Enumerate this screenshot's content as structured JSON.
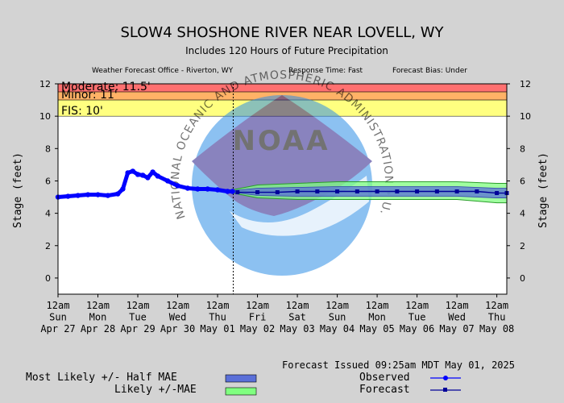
{
  "header": {
    "title": "SLOW4 SHOSHONE RIVER NEAR LOVELL, WY",
    "subtitle": "Includes 120 Hours of Future Precipitation",
    "wfo": "Weather Forecast Office - Riverton, WY",
    "response_time": "Response Time: Fast",
    "forecast_bias": "Forecast Bias:  Under"
  },
  "footer": {
    "issued": "Forecast Issued 09:25am MDT May 01, 2025"
  },
  "legend": {
    "most_likely": "Most Likely +/- Half MAE",
    "likely": "Likely +/-MAE",
    "observed": "Observed",
    "forecast": "Forecast"
  },
  "watermark": {
    "logo_text": "NOAA",
    "ring_text": "NATIONAL OCEANIC AND ATMOSPHERIC ADMINISTRATION • U.S. DEPARTMENT OF COMMERCE •"
  },
  "colors": {
    "moderate": "#ff7070",
    "minor": "#ffb266",
    "action": "#ffff80",
    "observed": "#0000ff",
    "forecast": "#000099",
    "half_mae_band": "#5a6fd8",
    "mae_band": "#80ff80",
    "plot_bg": "#ffffff",
    "page_bg": "#d3d3d3"
  },
  "chart_data": {
    "type": "line",
    "ylabel_left": "Stage (feet)",
    "ylabel_right": "Stage (feet)",
    "ylim": [
      -1,
      12
    ],
    "yticks": [
      0,
      2,
      4,
      6,
      8,
      10,
      12
    ],
    "grid": false,
    "legend_position": "bottom",
    "xlim": [
      "2025-04-27 00:00",
      "2025-05-08 06:00"
    ],
    "xticks": [
      {
        "at": "2025-04-27 00:00",
        "l1": "12am",
        "l2": "Sun",
        "l3": "Apr 27"
      },
      {
        "at": "2025-04-28 00:00",
        "l1": "12am",
        "l2": "Mon",
        "l3": "Apr 28"
      },
      {
        "at": "2025-04-29 00:00",
        "l1": "12am",
        "l2": "Tue",
        "l3": "Apr 29"
      },
      {
        "at": "2025-04-30 00:00",
        "l1": "12am",
        "l2": "Wed",
        "l3": "Apr 30"
      },
      {
        "at": "2025-05-01 00:00",
        "l1": "12am",
        "l2": "Thu",
        "l3": "May 01"
      },
      {
        "at": "2025-05-02 00:00",
        "l1": "12am",
        "l2": "Fri",
        "l3": "May 02"
      },
      {
        "at": "2025-05-03 00:00",
        "l1": "12am",
        "l2": "Sat",
        "l3": "May 03"
      },
      {
        "at": "2025-05-04 00:00",
        "l1": "12am",
        "l2": "Sun",
        "l3": "May 04"
      },
      {
        "at": "2025-05-05 00:00",
        "l1": "12am",
        "l2": "Mon",
        "l3": "May 05"
      },
      {
        "at": "2025-05-06 00:00",
        "l1": "12am",
        "l2": "Tue",
        "l3": "May 06"
      },
      {
        "at": "2025-05-07 00:00",
        "l1": "12am",
        "l2": "Wed",
        "l3": "May 07"
      },
      {
        "at": "2025-05-08 00:00",
        "l1": "12am",
        "l2": "Thu",
        "l3": "May 08"
      }
    ],
    "flood_categories": [
      {
        "name": "moderate",
        "label": "Moderate: 11.5'",
        "from": 11.5,
        "to": 12
      },
      {
        "name": "minor",
        "label": "Minor: 11'",
        "from": 11,
        "to": 11.5
      },
      {
        "name": "action",
        "label": "FIS: 10'",
        "from": 10,
        "to": 11
      }
    ],
    "forecast_issued_at": "2025-05-01 09:25",
    "observed": [
      [
        "2025-04-27 00:00",
        5.0
      ],
      [
        "2025-04-27 06:00",
        5.05
      ],
      [
        "2025-04-27 12:00",
        5.1
      ],
      [
        "2025-04-27 18:00",
        5.15
      ],
      [
        "2025-04-28 00:00",
        5.15
      ],
      [
        "2025-04-28 06:00",
        5.1
      ],
      [
        "2025-04-28 12:00",
        5.2
      ],
      [
        "2025-04-28 15:00",
        5.5
      ],
      [
        "2025-04-28 18:00",
        6.5
      ],
      [
        "2025-04-28 21:00",
        6.6
      ],
      [
        "2025-04-29 00:00",
        6.4
      ],
      [
        "2025-04-29 03:00",
        6.35
      ],
      [
        "2025-04-29 06:00",
        6.2
      ],
      [
        "2025-04-29 09:00",
        6.55
      ],
      [
        "2025-04-29 12:00",
        6.3
      ],
      [
        "2025-04-29 18:00",
        6.0
      ],
      [
        "2025-04-30 00:00",
        5.7
      ],
      [
        "2025-04-30 06:00",
        5.55
      ],
      [
        "2025-04-30 12:00",
        5.5
      ],
      [
        "2025-04-30 18:00",
        5.5
      ],
      [
        "2025-05-01 00:00",
        5.45
      ],
      [
        "2025-05-01 06:00",
        5.35
      ],
      [
        "2025-05-01 09:00",
        5.35
      ]
    ],
    "forecast": [
      [
        "2025-05-01 12:00",
        5.3
      ],
      [
        "2025-05-02 00:00",
        5.3
      ],
      [
        "2025-05-02 12:00",
        5.3
      ],
      [
        "2025-05-03 00:00",
        5.35
      ],
      [
        "2025-05-03 12:00",
        5.35
      ],
      [
        "2025-05-04 00:00",
        5.35
      ],
      [
        "2025-05-04 12:00",
        5.35
      ],
      [
        "2025-05-05 00:00",
        5.35
      ],
      [
        "2025-05-05 12:00",
        5.35
      ],
      [
        "2025-05-06 00:00",
        5.35
      ],
      [
        "2025-05-06 12:00",
        5.35
      ],
      [
        "2025-05-07 00:00",
        5.35
      ],
      [
        "2025-05-07 12:00",
        5.35
      ],
      [
        "2025-05-08 00:00",
        5.25
      ],
      [
        "2025-05-08 06:00",
        5.25
      ]
    ],
    "mae_band": [
      [
        "2025-05-01 09:00",
        5.25,
        5.45
      ],
      [
        "2025-05-02 00:00",
        4.95,
        5.75
      ],
      [
        "2025-05-03 00:00",
        4.85,
        5.85
      ],
      [
        "2025-05-04 00:00",
        4.85,
        5.95
      ],
      [
        "2025-05-05 00:00",
        4.85,
        5.95
      ],
      [
        "2025-05-06 00:00",
        4.85,
        5.95
      ],
      [
        "2025-05-07 00:00",
        4.85,
        5.95
      ],
      [
        "2025-05-08 00:00",
        4.65,
        5.85
      ],
      [
        "2025-05-08 06:00",
        4.65,
        5.85
      ]
    ],
    "half_mae_band": [
      [
        "2025-05-01 09:00",
        5.3,
        5.4
      ],
      [
        "2025-05-02 00:00",
        5.1,
        5.55
      ],
      [
        "2025-05-03 00:00",
        5.05,
        5.6
      ],
      [
        "2025-05-04 00:00",
        5.05,
        5.65
      ],
      [
        "2025-05-05 00:00",
        5.05,
        5.65
      ],
      [
        "2025-05-06 00:00",
        5.05,
        5.65
      ],
      [
        "2025-05-07 00:00",
        5.05,
        5.65
      ],
      [
        "2025-05-08 00:00",
        4.95,
        5.55
      ],
      [
        "2025-05-08 06:00",
        4.95,
        5.55
      ]
    ]
  }
}
